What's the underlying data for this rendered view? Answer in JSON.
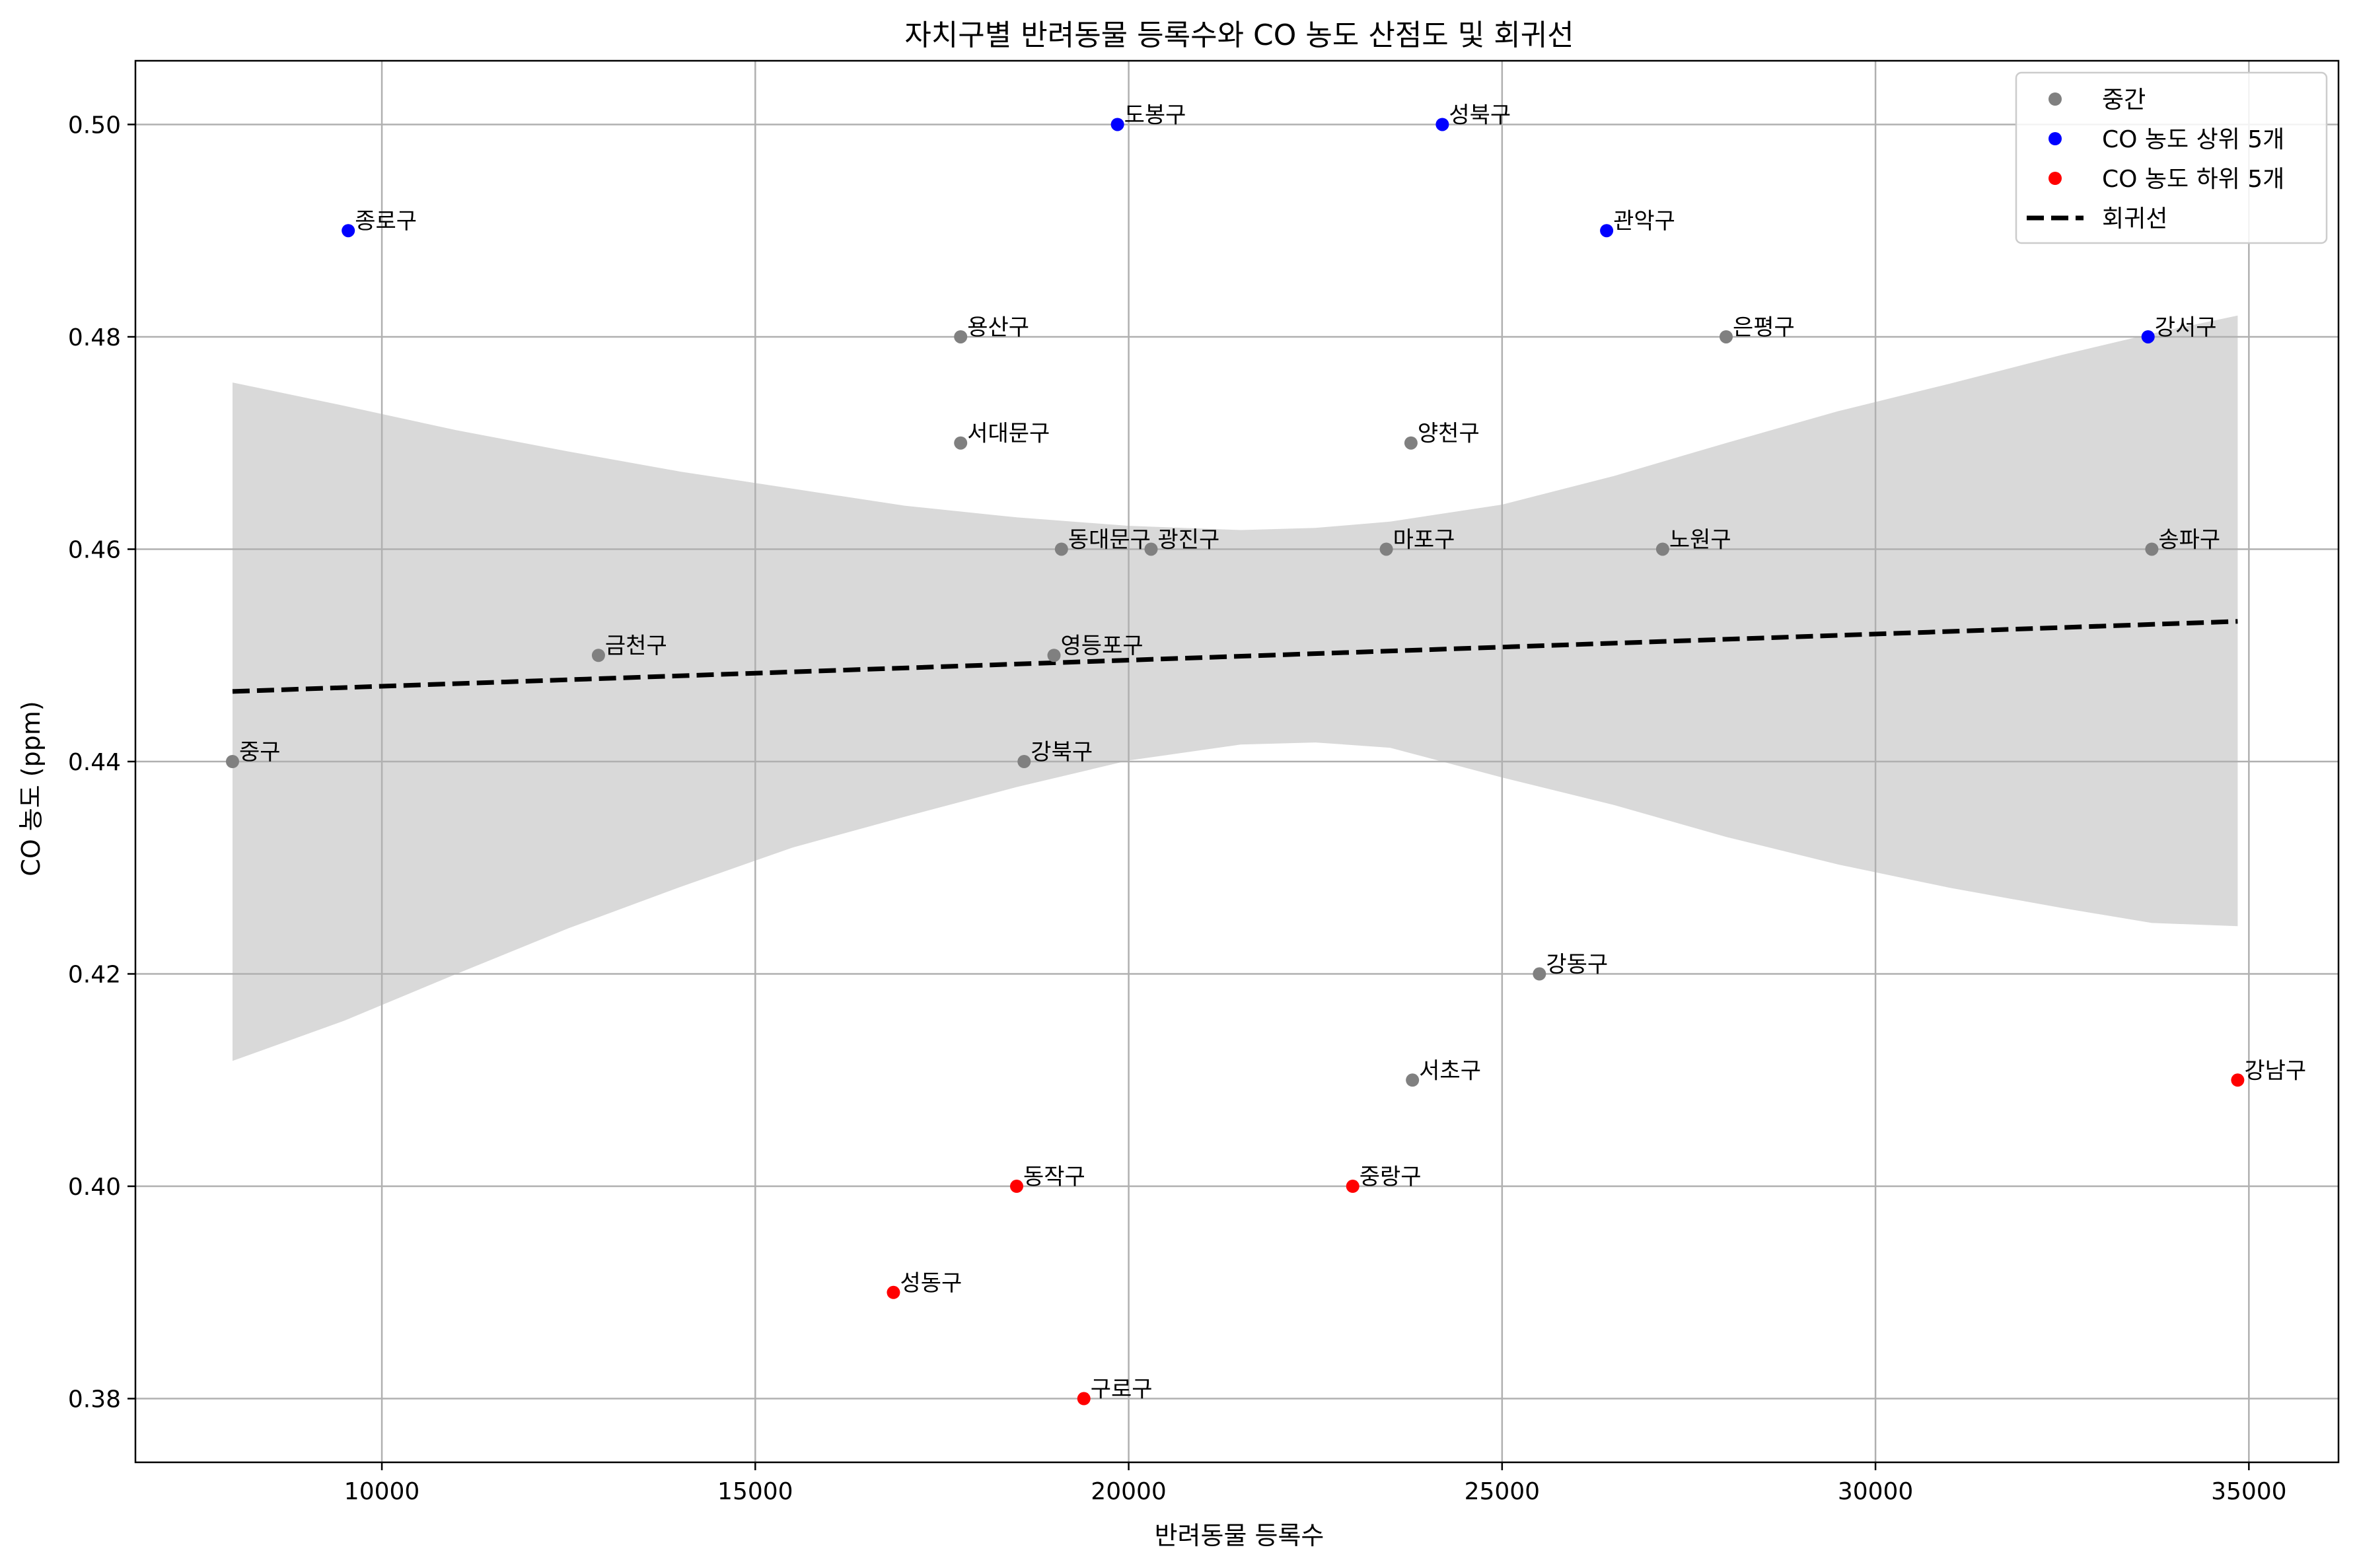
{
  "chart_data": {
    "type": "scatter",
    "title": "자치구별 반려동물 등록수와 CO 농도 산점도 및 회귀선",
    "xlabel": "반려동물 등록수",
    "ylabel": "CO 농도 (ppm)",
    "xlim": [
      6700,
      36200
    ],
    "ylim": [
      0.374,
      0.506
    ],
    "x_ticks": [
      10000,
      15000,
      20000,
      25000,
      30000,
      35000
    ],
    "x_tick_labels": [
      "10000",
      "15000",
      "20000",
      "25000",
      "30000",
      "35000"
    ],
    "y_ticks": [
      0.38,
      0.4,
      0.42,
      0.44,
      0.46,
      0.48,
      0.5
    ],
    "y_tick_labels": [
      "0.38",
      "0.40",
      "0.42",
      "0.44",
      "0.46",
      "0.48",
      "0.50"
    ],
    "grid": true,
    "legend_position": "top-right",
    "series": [
      {
        "name": "중간",
        "color": "#808080",
        "points": [
          {
            "label": "중구",
            "x": 8000,
            "y": 0.44
          },
          {
            "label": "금천구",
            "x": 12900,
            "y": 0.45
          },
          {
            "label": "용산구",
            "x": 17750,
            "y": 0.48
          },
          {
            "label": "서대문구",
            "x": 17750,
            "y": 0.47
          },
          {
            "label": "강북구",
            "x": 18600,
            "y": 0.44
          },
          {
            "label": "영등포구",
            "x": 19000,
            "y": 0.45
          },
          {
            "label": "동대문구",
            "x": 19100,
            "y": 0.46
          },
          {
            "label": "광진구",
            "x": 20300,
            "y": 0.46
          },
          {
            "label": "마포구",
            "x": 23450,
            "y": 0.46
          },
          {
            "label": "양천구",
            "x": 23780,
            "y": 0.47
          },
          {
            "label": "서초구",
            "x": 23800,
            "y": 0.41
          },
          {
            "label": "강동구",
            "x": 25500,
            "y": 0.42
          },
          {
            "label": "노원구",
            "x": 27150,
            "y": 0.46
          },
          {
            "label": "은평구",
            "x": 28000,
            "y": 0.48
          },
          {
            "label": "송파구",
            "x": 33700,
            "y": 0.46
          }
        ]
      },
      {
        "name": "CO 농도 상위 5개",
        "color": "#0000ff",
        "points": [
          {
            "label": "종로구",
            "x": 9550,
            "y": 0.49
          },
          {
            "label": "도봉구",
            "x": 19850,
            "y": 0.5
          },
          {
            "label": "성북구",
            "x": 24200,
            "y": 0.5
          },
          {
            "label": "관악구",
            "x": 26400,
            "y": 0.49
          },
          {
            "label": "강서구",
            "x": 33650,
            "y": 0.48
          }
        ]
      },
      {
        "name": "CO 농도 하위 5개",
        "color": "#ff0000",
        "points": [
          {
            "label": "성동구",
            "x": 16850,
            "y": 0.39
          },
          {
            "label": "동작구",
            "x": 18500,
            "y": 0.4
          },
          {
            "label": "구로구",
            "x": 19400,
            "y": 0.38
          },
          {
            "label": "중랑구",
            "x": 23000,
            "y": 0.4
          },
          {
            "label": "강남구",
            "x": 34850,
            "y": 0.41
          }
        ]
      }
    ],
    "regression": {
      "name": "회귀선",
      "color": "#000000",
      "style": "dashed",
      "x": [
        8000,
        34850
      ],
      "y": [
        0.4466,
        0.4532
      ]
    },
    "confidence_band": {
      "color": "#d9d9d9",
      "x": [
        8000,
        9500,
        11000,
        12500,
        14000,
        15500,
        17000,
        18500,
        20000,
        21500,
        22500,
        23500,
        25000,
        26500,
        28000,
        29500,
        31000,
        32500,
        33700,
        34850
      ],
      "upper": [
        0.4757,
        0.4735,
        0.4712,
        0.4692,
        0.4673,
        0.4657,
        0.4641,
        0.463,
        0.4622,
        0.4618,
        0.462,
        0.4626,
        0.4642,
        0.4669,
        0.47,
        0.473,
        0.4756,
        0.4783,
        0.4803,
        0.482
      ],
      "lower": [
        0.4118,
        0.4156,
        0.42,
        0.4243,
        0.4282,
        0.4319,
        0.4348,
        0.4376,
        0.4401,
        0.4416,
        0.4418,
        0.4413,
        0.4385,
        0.4359,
        0.4329,
        0.4303,
        0.4281,
        0.4262,
        0.4248,
        0.4245
      ]
    }
  }
}
